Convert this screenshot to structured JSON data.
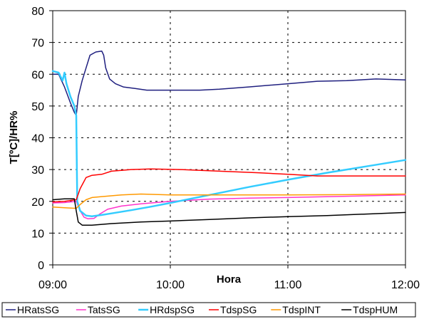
{
  "chart_data": {
    "type": "line",
    "title": "",
    "xlabel": "Hora",
    "ylabel": "T[ºC]/HR%",
    "x_ticks": [
      "09:00",
      "10:00",
      "11:00",
      "12:00"
    ],
    "xlim": [
      "09:00",
      "12:00"
    ],
    "ylim": [
      0,
      80
    ],
    "y_ticks": [
      0,
      10,
      20,
      30,
      40,
      50,
      60,
      70,
      80
    ],
    "grid": "dashed",
    "legend": "bottom",
    "series": [
      {
        "name": "HRatsSG",
        "color": "#1f1f7f",
        "points": [
          [
            "09:00",
            60
          ],
          [
            "09:03",
            60
          ],
          [
            "09:06",
            56
          ],
          [
            "09:09",
            51
          ],
          [
            "09:11",
            48
          ],
          [
            "09:12",
            47
          ],
          [
            "09:13",
            53
          ],
          [
            "09:15",
            58
          ],
          [
            "09:17",
            62
          ],
          [
            "09:19",
            66
          ],
          [
            "09:22",
            67
          ],
          [
            "09:25",
            67.3
          ],
          [
            "09:26",
            66
          ],
          [
            "09:27",
            62
          ],
          [
            "09:29",
            58.5
          ],
          [
            "09:32",
            57
          ],
          [
            "09:36",
            56
          ],
          [
            "09:42",
            55.5
          ],
          [
            "09:48",
            55
          ],
          [
            "09:55",
            55
          ],
          [
            "10:05",
            55
          ],
          [
            "10:15",
            55
          ],
          [
            "10:25",
            55.3
          ],
          [
            "10:40",
            56
          ],
          [
            "11:00",
            57
          ],
          [
            "11:15",
            57.8
          ],
          [
            "11:30",
            58
          ],
          [
            "11:45",
            58.5
          ],
          [
            "12:00",
            58.2
          ]
        ]
      },
      {
        "name": "TatsSG",
        "color": "#ff33cc",
        "points": [
          [
            "09:00",
            19.5
          ],
          [
            "09:06",
            19.6
          ],
          [
            "09:12",
            20
          ],
          [
            "09:14",
            17
          ],
          [
            "09:16",
            15
          ],
          [
            "09:18",
            14.5
          ],
          [
            "09:21",
            14.6
          ],
          [
            "09:24",
            16
          ],
          [
            "09:28",
            17.5
          ],
          [
            "09:35",
            18.5
          ],
          [
            "09:45",
            19.2
          ],
          [
            "10:00",
            20
          ],
          [
            "10:20",
            20.7
          ],
          [
            "10:40",
            21
          ],
          [
            "11:00",
            21.2
          ],
          [
            "11:30",
            21.6
          ],
          [
            "12:00",
            22
          ]
        ]
      },
      {
        "name": "HRdspSG",
        "color": "#33ccff",
        "points": [
          [
            "09:00",
            61
          ],
          [
            "09:03",
            60.5
          ],
          [
            "09:05",
            58
          ],
          [
            "09:06",
            60.5
          ],
          [
            "09:07",
            57
          ],
          [
            "09:09",
            53
          ],
          [
            "09:11",
            50
          ],
          [
            "09:12",
            47
          ],
          [
            "09:12.5",
            20
          ],
          [
            "09:14",
            17
          ],
          [
            "09:17",
            15.5
          ],
          [
            "09:20",
            15.3
          ],
          [
            "09:25",
            15.7
          ],
          [
            "09:30",
            16.2
          ],
          [
            "09:40",
            17.2
          ],
          [
            "09:50",
            18.3
          ],
          [
            "10:00",
            19.5
          ],
          [
            "10:20",
            22
          ],
          [
            "10:40",
            24.5
          ],
          [
            "11:00",
            26.8
          ],
          [
            "11:20",
            29
          ],
          [
            "11:40",
            31
          ],
          [
            "12:00",
            33
          ]
        ]
      },
      {
        "name": "TdspSG",
        "color": "#ff0000",
        "points": [
          [
            "09:00",
            19.8
          ],
          [
            "09:06",
            20
          ],
          [
            "09:12",
            20.5
          ],
          [
            "09:14",
            24
          ],
          [
            "09:17",
            27.5
          ],
          [
            "09:20",
            28.2
          ],
          [
            "09:25",
            28.5
          ],
          [
            "09:30",
            29.5
          ],
          [
            "09:40",
            30
          ],
          [
            "09:50",
            30.2
          ],
          [
            "10:05",
            30
          ],
          [
            "10:25",
            29.5
          ],
          [
            "10:45",
            29
          ],
          [
            "11:00",
            28.5
          ],
          [
            "11:15",
            28
          ],
          [
            "11:30",
            28
          ],
          [
            "12:00",
            28
          ]
        ]
      },
      {
        "name": "TdspINT",
        "color": "#ff9900",
        "points": [
          [
            "09:00",
            18.2
          ],
          [
            "09:06",
            18
          ],
          [
            "09:12",
            17.8
          ],
          [
            "09:14",
            19
          ],
          [
            "09:17",
            20.5
          ],
          [
            "09:20",
            21.2
          ],
          [
            "09:25",
            21.5
          ],
          [
            "09:35",
            22
          ],
          [
            "09:45",
            22.3
          ],
          [
            "10:00",
            22
          ],
          [
            "10:20",
            22
          ],
          [
            "10:40",
            22
          ],
          [
            "11:00",
            22
          ],
          [
            "11:30",
            22.1
          ],
          [
            "12:00",
            22.3
          ]
        ]
      },
      {
        "name": "TdspHUM",
        "color": "#000000",
        "points": [
          [
            "09:00",
            20.5
          ],
          [
            "09:06",
            20.8
          ],
          [
            "09:11",
            20.8
          ],
          [
            "09:12",
            17
          ],
          [
            "09:13",
            13.5
          ],
          [
            "09:15",
            12.5
          ],
          [
            "09:20",
            12.5
          ],
          [
            "09:30",
            13
          ],
          [
            "09:45",
            13.5
          ],
          [
            "10:00",
            13.8
          ],
          [
            "10:20",
            14.3
          ],
          [
            "10:40",
            14.8
          ],
          [
            "11:00",
            15.2
          ],
          [
            "11:20",
            15.5
          ],
          [
            "11:40",
            16
          ],
          [
            "12:00",
            16.5
          ]
        ]
      }
    ]
  }
}
